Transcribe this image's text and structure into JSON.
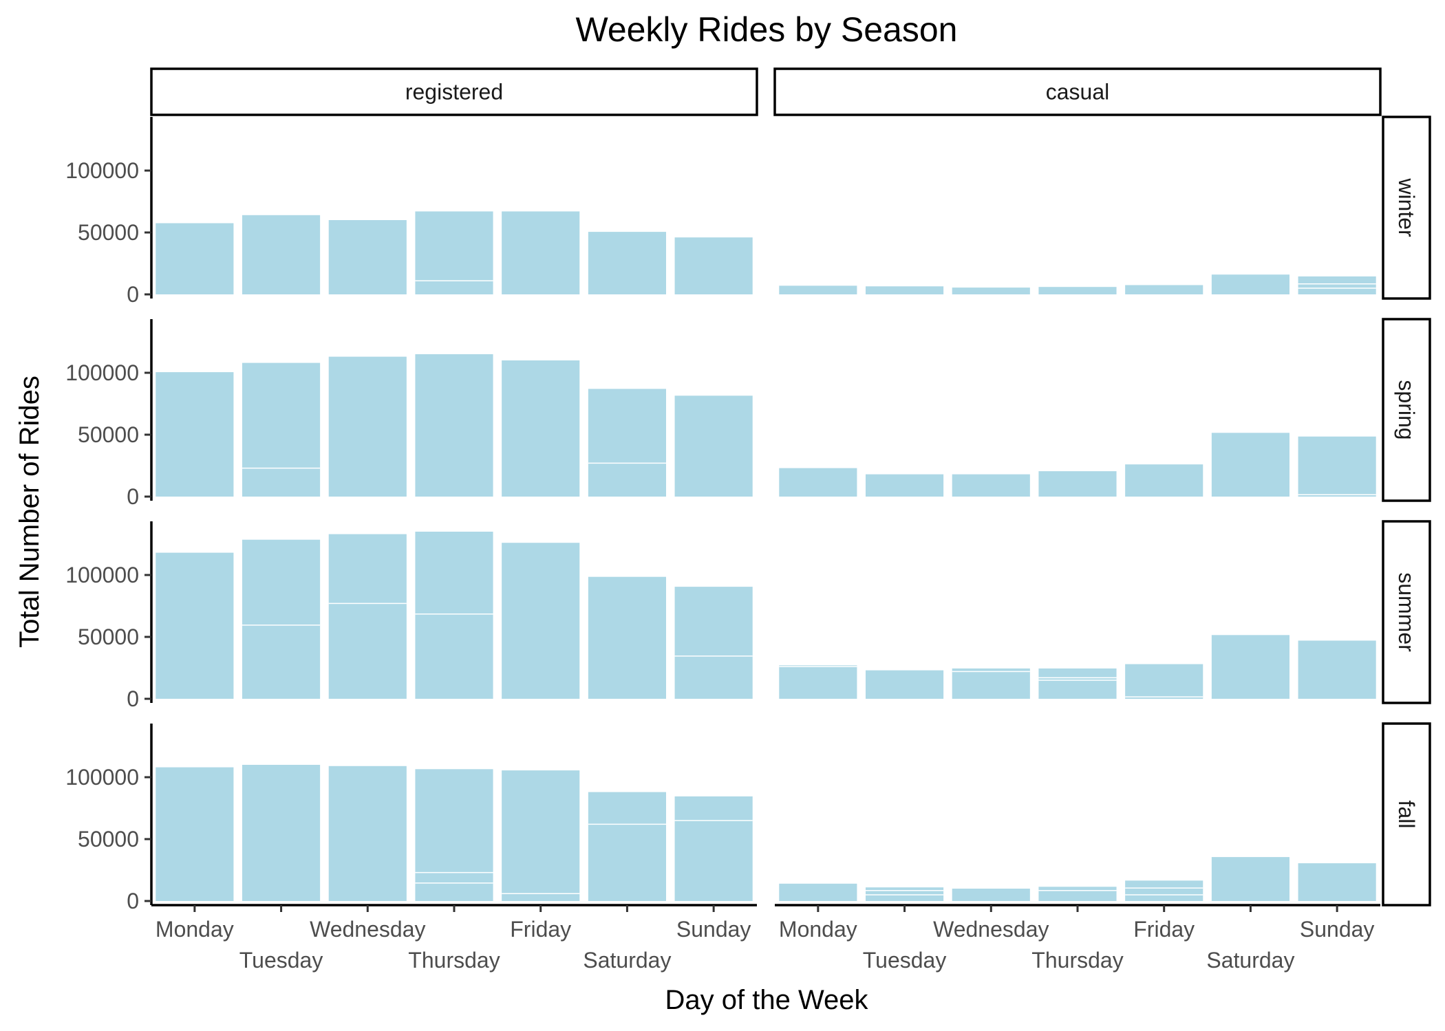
{
  "chart_data": {
    "type": "bar",
    "title": "Weekly Rides by Season",
    "xlabel": "Day of the Week",
    "ylabel": "Total Number of Rides",
    "categories": [
      "Monday",
      "Tuesday",
      "Wednesday",
      "Thursday",
      "Friday",
      "Saturday",
      "Sunday"
    ],
    "ylim": [
      0,
      140000
    ],
    "yticks": [
      0,
      50000,
      100000
    ],
    "ytick_labels": [
      "0",
      "50000",
      "100000"
    ],
    "grid": false,
    "legend": "none",
    "bar_color": "#add8e6",
    "segment_line_color": "#ffffff",
    "facet_columns": [
      "registered",
      "casual"
    ],
    "facet_rows": [
      "winter",
      "spring",
      "summer",
      "fall"
    ],
    "panels": [
      {
        "season": "winter",
        "user_type": "registered",
        "values": [
          57500,
          64000,
          60000,
          67000,
          67000,
          50500,
          46000
        ],
        "segment_breaks": [
          [],
          [],
          [],
          [
            11000
          ],
          [],
          [],
          []
        ]
      },
      {
        "season": "winter",
        "user_type": "casual",
        "values": [
          7000,
          6500,
          5500,
          6000,
          7500,
          16000,
          14500
        ],
        "segment_breaks": [
          [],
          [],
          [],
          [],
          [],
          [],
          [
            5000,
            8500
          ]
        ]
      },
      {
        "season": "spring",
        "user_type": "registered",
        "values": [
          100500,
          108000,
          113000,
          115000,
          110000,
          87000,
          81500
        ],
        "segment_breaks": [
          [],
          [
            23000
          ],
          [],
          [],
          [],
          [
            27000
          ],
          []
        ]
      },
      {
        "season": "spring",
        "user_type": "casual",
        "values": [
          23000,
          18000,
          18000,
          20500,
          26000,
          51500,
          48500
        ],
        "segment_breaks": [
          [],
          [],
          [],
          [],
          [],
          [],
          [
            1500
          ]
        ]
      },
      {
        "season": "summer",
        "user_type": "registered",
        "values": [
          118000,
          128500,
          133000,
          135000,
          126000,
          98500,
          90500
        ],
        "segment_breaks": [
          [],
          [
            59500
          ],
          [
            77000
          ],
          [
            68500
          ],
          [],
          [],
          [
            34500
          ]
        ]
      },
      {
        "season": "summer",
        "user_type": "casual",
        "values": [
          27000,
          23000,
          24500,
          24500,
          28000,
          51500,
          47000
        ],
        "segment_breaks": [
          [
            26000
          ],
          [],
          [
            22000
          ],
          [
            15000,
            17000
          ],
          [
            1500
          ],
          [],
          []
        ]
      },
      {
        "season": "fall",
        "user_type": "registered",
        "values": [
          108000,
          110000,
          109000,
          106500,
          105500,
          88000,
          84500
        ],
        "segment_breaks": [
          [],
          [],
          [],
          [
            14500,
            23000
          ],
          [
            6000
          ],
          [
            62000
          ],
          [
            65000
          ]
        ]
      },
      {
        "season": "fall",
        "user_type": "casual",
        "values": [
          14000,
          11000,
          10000,
          11500,
          16500,
          35500,
          30500
        ],
        "segment_breaks": [
          [],
          [
            5000,
            8500
          ],
          [],
          [
            8500
          ],
          [
            5000,
            10500
          ],
          [],
          []
        ]
      }
    ]
  }
}
